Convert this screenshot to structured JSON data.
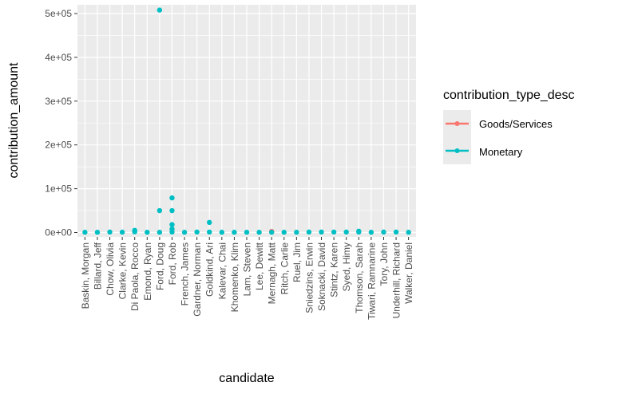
{
  "chart_data": {
    "type": "scatter",
    "xlabel": "candidate",
    "ylabel": "contribution_amount",
    "ylim": [
      -10000,
      520000
    ],
    "yticks": [
      0,
      100000,
      200000,
      300000,
      400000,
      500000
    ],
    "ytick_labels": [
      "0e+00",
      "1e+05",
      "2e+05",
      "3e+05",
      "4e+05",
      "5e+05"
    ],
    "categories": [
      "Baskin, Morgan",
      "Billard, Jeff",
      "Chow, Olivia",
      "Clarke, Kevin",
      "Di Paola, Rocco",
      "Emond, Ryan",
      "Ford, Doug",
      "Ford, Rob",
      "French, James",
      "Gardner, Norman",
      "Goldkind, Ari",
      "Kalevar, Chai",
      "Khomenko, Klim",
      "Lam, Steven",
      "Lee, Dewitt",
      "Mernagh, Matt",
      "Ritch, Carlie",
      "Ruel, Jim",
      "Sniedzins, Erwin",
      "Soknacki, David",
      "Stintz, Karen",
      "Syed, Himy",
      "Thomson, Sarah",
      "Tiwari, Ramnarine",
      "Tory, John",
      "Underhill, Richard",
      "Walker, Daniel"
    ],
    "grid": true,
    "legend": {
      "title": "contribution_type_desc",
      "placement": "right",
      "entries": [
        "Goods/Services",
        "Monetary"
      ]
    },
    "series": [
      {
        "name": "Goods/Services",
        "color": "#F8766D",
        "points": [
          {
            "x": "Mernagh, Matt",
            "y": 2500
          }
        ]
      },
      {
        "name": "Monetary",
        "color": "#00BFC4",
        "points": [
          {
            "x": "Baskin, Morgan",
            "y": 500
          },
          {
            "x": "Billard, Jeff",
            "y": 500
          },
          {
            "x": "Chow, Olivia",
            "y": 1000
          },
          {
            "x": "Clarke, Kevin",
            "y": 750
          },
          {
            "x": "Di Paola, Rocco",
            "y": 1500
          },
          {
            "x": "Di Paola, Rocco",
            "y": 5000
          },
          {
            "x": "Emond, Ryan",
            "y": 500
          },
          {
            "x": "Ford, Doug",
            "y": 500
          },
          {
            "x": "Ford, Doug",
            "y": 50000
          },
          {
            "x": "Ford, Doug",
            "y": 508000
          },
          {
            "x": "Ford, Rob",
            "y": 1000
          },
          {
            "x": "Ford, Rob",
            "y": 8000
          },
          {
            "x": "Ford, Rob",
            "y": 18000
          },
          {
            "x": "Ford, Rob",
            "y": 50000
          },
          {
            "x": "Ford, Rob",
            "y": 79000
          },
          {
            "x": "French, James",
            "y": 500
          },
          {
            "x": "Gardner, Norman",
            "y": 1000
          },
          {
            "x": "Goldkind, Ari",
            "y": 1000
          },
          {
            "x": "Goldkind, Ari",
            "y": 23000
          },
          {
            "x": "Kalevar, Chai",
            "y": 500
          },
          {
            "x": "Khomenko, Klim",
            "y": 500
          },
          {
            "x": "Lam, Steven",
            "y": 500
          },
          {
            "x": "Lee, Dewitt",
            "y": 500
          },
          {
            "x": "Mernagh, Matt",
            "y": 500
          },
          {
            "x": "Ritch, Carlie",
            "y": 500
          },
          {
            "x": "Ruel, Jim",
            "y": 500
          },
          {
            "x": "Sniedzins, Erwin",
            "y": 1000
          },
          {
            "x": "Soknacki, David",
            "y": 1000
          },
          {
            "x": "Stintz, Karen",
            "y": 1000
          },
          {
            "x": "Syed, Himy",
            "y": 1000
          },
          {
            "x": "Thomson, Sarah",
            "y": 1000
          },
          {
            "x": "Thomson, Sarah",
            "y": 3000
          },
          {
            "x": "Tiwari, Ramnarine",
            "y": 500
          },
          {
            "x": "Tory, John",
            "y": 1000
          },
          {
            "x": "Underhill, Richard",
            "y": 1000
          },
          {
            "x": "Walker, Daniel",
            "y": 500
          }
        ]
      }
    ]
  }
}
